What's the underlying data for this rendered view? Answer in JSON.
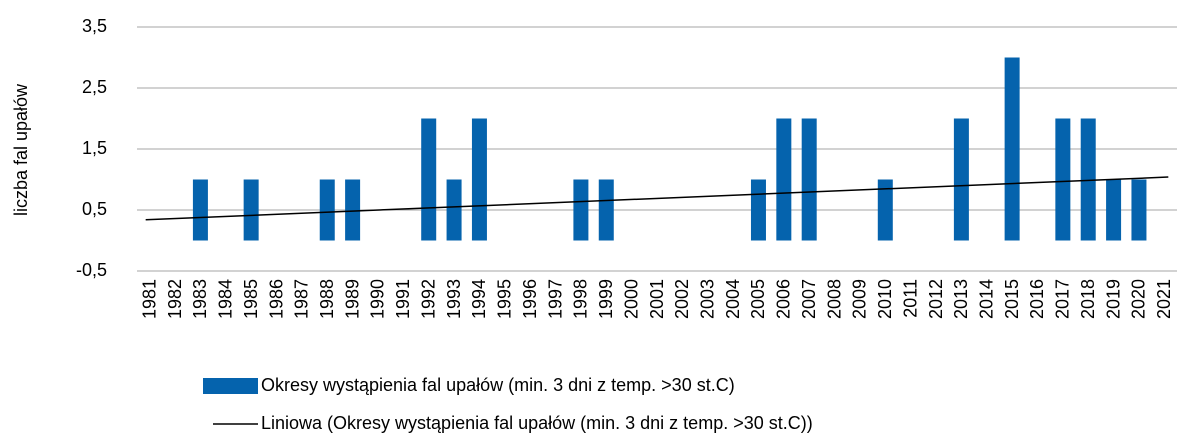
{
  "chart_data": {
    "type": "bar",
    "y_label": "liczba fal upałów",
    "categories": [
      "1981",
      "1982",
      "1983",
      "1984",
      "1985",
      "1986",
      "1987",
      "1988",
      "1989",
      "1990",
      "1991",
      "1992",
      "1993",
      "1994",
      "1995",
      "1996",
      "1997",
      "1998",
      "1999",
      "2000",
      "2001",
      "2002",
      "2003",
      "2004",
      "2005",
      "2006",
      "2007",
      "2008",
      "2009",
      "2010",
      "2011",
      "2012",
      "2013",
      "2014",
      "2015",
      "2016",
      "2017",
      "2018",
      "2019",
      "2020",
      "2021"
    ],
    "series": [
      {
        "name": "Okresy wystąpienia fal upałów (min. 3 dni z temp. >30 st.C)",
        "color": "#0563ad",
        "values": [
          0,
          0,
          1,
          0,
          1,
          0,
          0,
          1,
          1,
          0,
          0,
          2,
          1,
          2,
          0,
          0,
          0,
          1,
          1,
          0,
          0,
          0,
          0,
          0,
          1,
          2,
          2,
          0,
          0,
          1,
          0,
          0,
          2,
          0,
          3,
          0,
          2,
          2,
          1,
          1,
          0
        ]
      }
    ],
    "trend": {
      "name": "Liniowa (Okresy wystąpienia fal upałów (min. 3 dni z temp. >30 st.C))",
      "color": "#000000",
      "start": 0.34,
      "end": 1.04
    },
    "ylim": [
      -0.5,
      3.5
    ],
    "yticks": [
      {
        "value": -0.5,
        "label": "-0,5"
      },
      {
        "value": 0.5,
        "label": "0,5"
      },
      {
        "value": 1.5,
        "label": "1,5"
      },
      {
        "value": 2.5,
        "label": "2,5"
      },
      {
        "value": 3.5,
        "label": "3,5"
      }
    ],
    "grid": true
  }
}
